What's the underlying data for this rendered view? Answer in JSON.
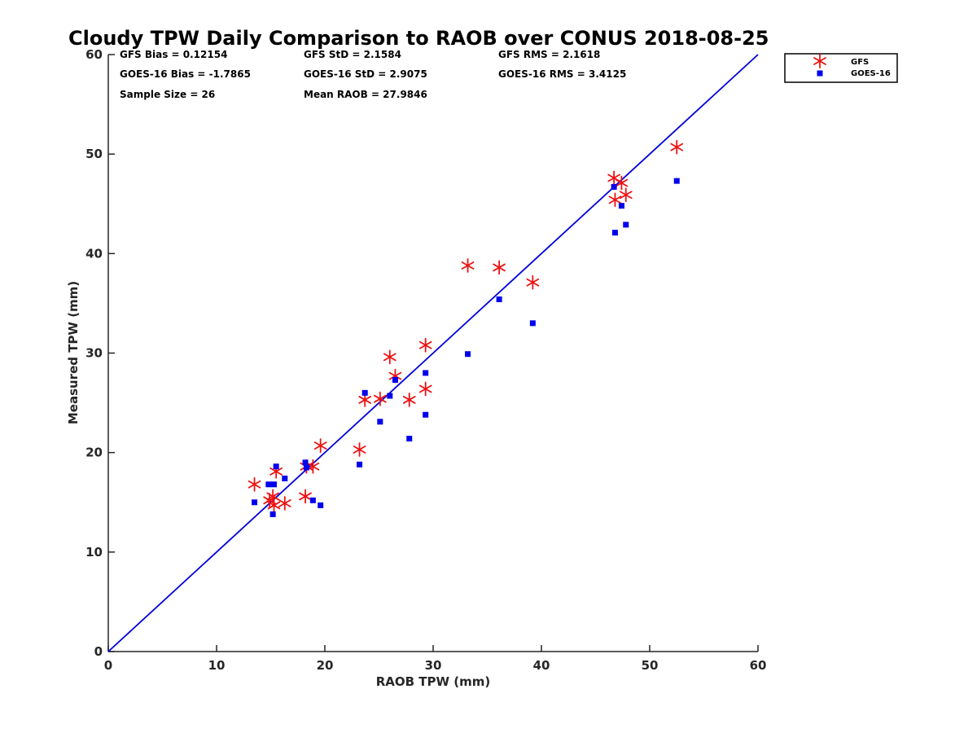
{
  "chart_data": {
    "type": "scatter",
    "title": "Cloudy TPW Daily Comparison to RAOB over CONUS 2018-08-25",
    "xlabel": "RAOB TPW (mm)",
    "ylabel": "Measured TPW (mm)",
    "xlim": [
      0,
      60
    ],
    "ylim": [
      0,
      60
    ],
    "xticks": [
      "0",
      "10",
      "20",
      "30",
      "40",
      "50",
      "60"
    ],
    "yticks": [
      "0",
      "10",
      "20",
      "30",
      "40",
      "50",
      "60"
    ],
    "grid": false,
    "legend_position": "top-right, outside",
    "reference_line": {
      "type": "1:1",
      "color": "#0000dd"
    },
    "stats": {
      "gfs_bias": "GFS Bias = 0.12154",
      "goes_bias": "GOES-16 Bias = -1.7865",
      "sample_size": "Sample Size = 26",
      "gfs_std": "GFS StD = 2.1584",
      "goes_std": "GOES-16 StD = 2.9075",
      "mean_raob": "Mean RAOB = 27.9846",
      "gfs_rms": "GFS RMS = 2.1618",
      "goes_rms": "GOES-16 RMS = 3.4125"
    },
    "series": [
      {
        "name": "GFS",
        "marker": "asterisk",
        "color": "#ee1111",
        "points": [
          [
            13.5,
            16.8
          ],
          [
            14.9,
            15.2
          ],
          [
            15.2,
            15.6
          ],
          [
            15.3,
            14.7
          ],
          [
            15.5,
            18.1
          ],
          [
            16.3,
            14.9
          ],
          [
            18.2,
            15.6
          ],
          [
            18.3,
            18.6
          ],
          [
            18.9,
            18.6
          ],
          [
            19.6,
            20.7
          ],
          [
            23.2,
            20.3
          ],
          [
            23.7,
            25.3
          ],
          [
            25.1,
            25.4
          ],
          [
            26.0,
            29.6
          ],
          [
            26.5,
            27.7
          ],
          [
            27.8,
            25.3
          ],
          [
            29.3,
            30.8
          ],
          [
            29.3,
            26.4
          ],
          [
            33.2,
            38.8
          ],
          [
            36.1,
            38.6
          ],
          [
            39.2,
            37.1
          ],
          [
            46.7,
            47.6
          ],
          [
            46.8,
            45.4
          ],
          [
            47.4,
            47.1
          ],
          [
            47.8,
            45.9
          ],
          [
            52.5,
            50.7
          ]
        ]
      },
      {
        "name": "GOES-16",
        "marker": "square",
        "color": "#0000ee",
        "points": [
          [
            13.5,
            15.0
          ],
          [
            14.8,
            16.8
          ],
          [
            15.2,
            13.8
          ],
          [
            15.3,
            16.8
          ],
          [
            15.5,
            18.6
          ],
          [
            16.3,
            17.4
          ],
          [
            18.2,
            19.0
          ],
          [
            18.3,
            18.5
          ],
          [
            18.9,
            15.2
          ],
          [
            19.6,
            14.7
          ],
          [
            23.2,
            18.8
          ],
          [
            23.7,
            26.0
          ],
          [
            25.1,
            23.1
          ],
          [
            26.0,
            25.7
          ],
          [
            26.5,
            27.3
          ],
          [
            27.8,
            21.4
          ],
          [
            29.3,
            28.0
          ],
          [
            29.3,
            23.8
          ],
          [
            33.2,
            29.9
          ],
          [
            36.1,
            35.4
          ],
          [
            39.2,
            33.0
          ],
          [
            46.7,
            46.7
          ],
          [
            46.8,
            42.1
          ],
          [
            47.4,
            44.8
          ],
          [
            47.8,
            42.9
          ],
          [
            52.5,
            47.3
          ]
        ]
      }
    ]
  }
}
